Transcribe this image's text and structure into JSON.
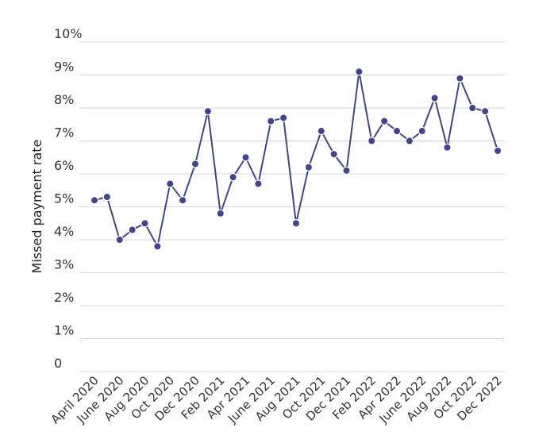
{
  "chart_data": {
    "type": "line",
    "title": "",
    "xlabel": "",
    "ylabel": "Missed payment rate",
    "ylim": [
      0,
      10
    ],
    "yticks": [
      "0",
      "1%",
      "2%",
      "3%",
      "4%",
      "5%",
      "6%",
      "7%",
      "8%",
      "9%",
      "10%"
    ],
    "grid": "horizontal",
    "legend": "none",
    "line_color": "#43448c",
    "x": [
      "April 2020",
      "May 2020",
      "June 2020",
      "July 2020",
      "Aug 2020",
      "Sept 2020",
      "Oct 2020",
      "Nov 2020",
      "Dec 2020",
      "Jan 2021",
      "Feb 2021",
      "Mar 2021",
      "Apr 2021",
      "May 2021",
      "June 2021",
      "July 2021",
      "Aug 2021",
      "Sept 2021",
      "Oct 2021",
      "Nov 2021",
      "Dec 2021",
      "Jan 2022",
      "Feb 2022",
      "Mar 2022",
      "Apr 2022",
      "May 2022",
      "June 2022",
      "July 2022",
      "Aug 2022",
      "Sept 2022",
      "Oct 2022",
      "Nov 2022",
      "Dec 2022"
    ],
    "xtick_labels": [
      "April 2020",
      "June 2020",
      "Aug 2020",
      "Oct 2020",
      "Dec 2020",
      "Feb 2021",
      "Apr 2021",
      "June 2021",
      "Aug 2021",
      "Oct 2021",
      "Dec 2021",
      "Feb 2022",
      "Apr 2022",
      "June 2022",
      "Aug 2022",
      "Oct 2022",
      "Dec 2022"
    ],
    "series": [
      {
        "values": [
          5.2,
          5.3,
          4.0,
          4.3,
          4.5,
          3.8,
          5.7,
          5.2,
          6.3,
          7.9,
          4.8,
          5.9,
          6.5,
          5.7,
          7.6,
          7.7,
          4.5,
          6.2,
          7.3,
          6.6,
          6.1,
          9.1,
          7.0,
          7.6,
          7.3,
          7.0,
          7.3,
          8.3,
          6.8,
          8.9,
          8.0,
          7.9,
          6.7
        ]
      }
    ]
  }
}
